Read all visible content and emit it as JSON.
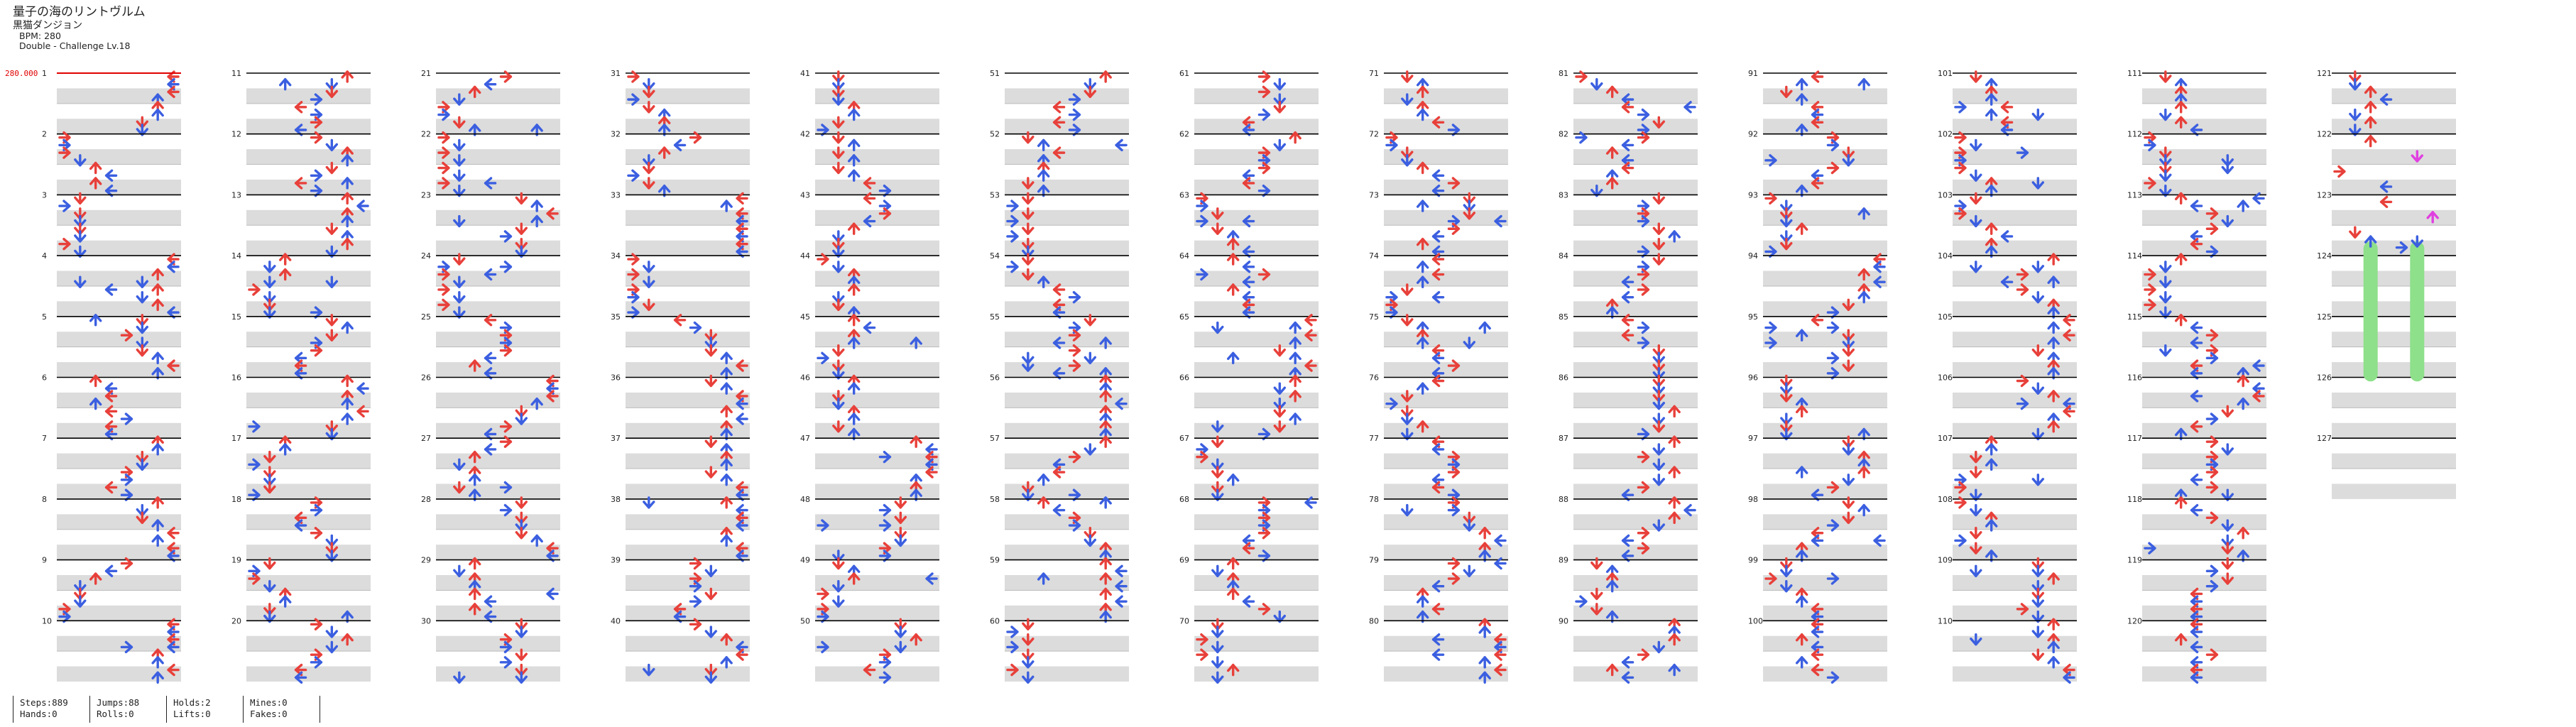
{
  "header": {
    "title": "量子の海のリントヴルム",
    "artist": "黒猫ダンジョン",
    "bpm": "BPM: 280",
    "difficulty": "Double - Challenge Lv.18"
  },
  "bpm_marker": "280.000",
  "measure_start": 1,
  "measure_end": 127,
  "colors": {
    "red_arrow": "#e8403a",
    "blue_arrow": "#3b5fe0",
    "hold_arrow": "#e040e0",
    "hold_body": "#8ee08a",
    "bpm_marker": "#e00000",
    "lane_stripe": "#dcdcdc",
    "measure_line": "#000000"
  },
  "icons": {
    "note": "arrow-icon",
    "hold": "hold-icon",
    "bpm": "bpm-change-icon"
  },
  "stats": [
    [
      "Steps:889",
      "Hands:0"
    ],
    [
      "Jumps:88",
      "Rolls:0"
    ],
    [
      "Holds:2",
      "Lifts:0"
    ],
    [
      "Mines:0",
      "Fakes:0"
    ]
  ]
}
